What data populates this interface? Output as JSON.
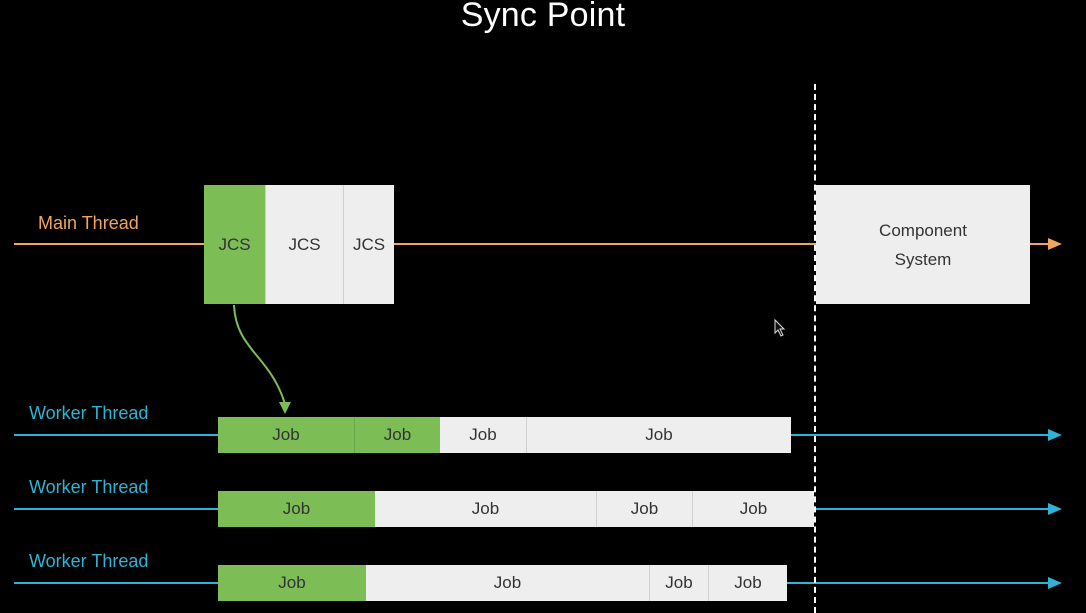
{
  "title": "Sync Point",
  "main_thread": {
    "label": "Main Thread",
    "blocks": [
      "JCS",
      "JCS",
      "JCS"
    ],
    "component_system": {
      "line1": "Component",
      "line2": "System"
    }
  },
  "worker_threads": [
    {
      "label": "Worker Thread",
      "jobs": [
        "Job",
        "Job",
        "Job",
        "Job"
      ]
    },
    {
      "label": "Worker Thread",
      "jobs": [
        "Job",
        "Job",
        "Job",
        "Job"
      ]
    },
    {
      "label": "Worker Thread",
      "jobs": [
        "Job",
        "Job",
        "Job",
        "Job"
      ]
    }
  ],
  "colors": {
    "main_thread": "#f2a55c",
    "worker_thread": "#2fb3d4",
    "scheduled_block": "#7cbd56",
    "pending_block": "#eeeeee",
    "background": "#000000"
  }
}
